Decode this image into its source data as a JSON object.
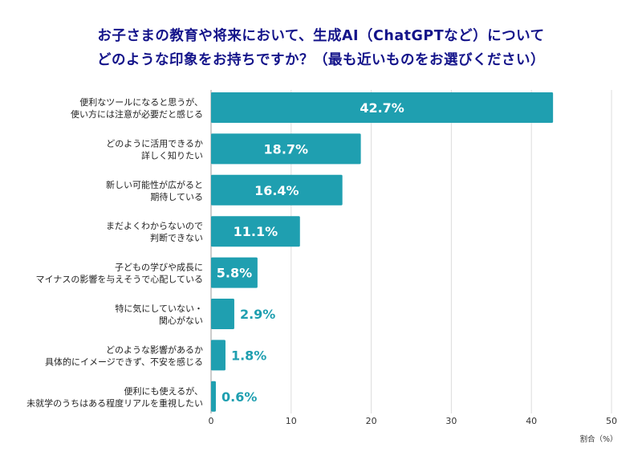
{
  "title": {
    "line1": "お子さまの教育や将来において、生成AI（ChatGPTなど）について",
    "line2": "どのような印象をお持ちですか？（最も近いものをお選びください）"
  },
  "colors": {
    "bar": "#1f9fb0",
    "title": "#14148a",
    "grid": "#dddddd"
  },
  "chart_data": {
    "type": "bar",
    "orientation": "horizontal",
    "title": "お子さまの教育や将来において、生成AI（ChatGPTなど）について どのような印象をお持ちですか？（最も近いものをお選びください）",
    "categories": [
      [
        "便利なツールになると思うが、",
        "使い方には注意が必要だと感じる"
      ],
      [
        "どのように活用できるか",
        "詳しく知りたい"
      ],
      [
        "新しい可能性が広がると",
        "期待している"
      ],
      [
        "まだよくわからないので",
        "判断できない"
      ],
      [
        "子どもの学びや成長に",
        "マイナスの影響を与えそうで心配している"
      ],
      [
        "特に気にしていない・",
        "関心がない"
      ],
      [
        "どのような影響があるか",
        "具体的にイメージできず、不安を感じる"
      ],
      [
        "便利にも使えるが、",
        "未就学のうちはある程度リアルを重視したい"
      ]
    ],
    "values": [
      42.7,
      18.7,
      16.4,
      11.1,
      5.8,
      2.9,
      1.8,
      0.6
    ],
    "labels": [
      "42.7%",
      "18.7%",
      "16.4%",
      "11.1%",
      "5.8%",
      "2.9%",
      "1.8%",
      "0.6%"
    ],
    "xticks": [
      0,
      10,
      20,
      30,
      40,
      50
    ],
    "xlim": [
      0,
      50
    ],
    "xlabel": "割合（%）",
    "ylabel": "",
    "grid": true
  }
}
